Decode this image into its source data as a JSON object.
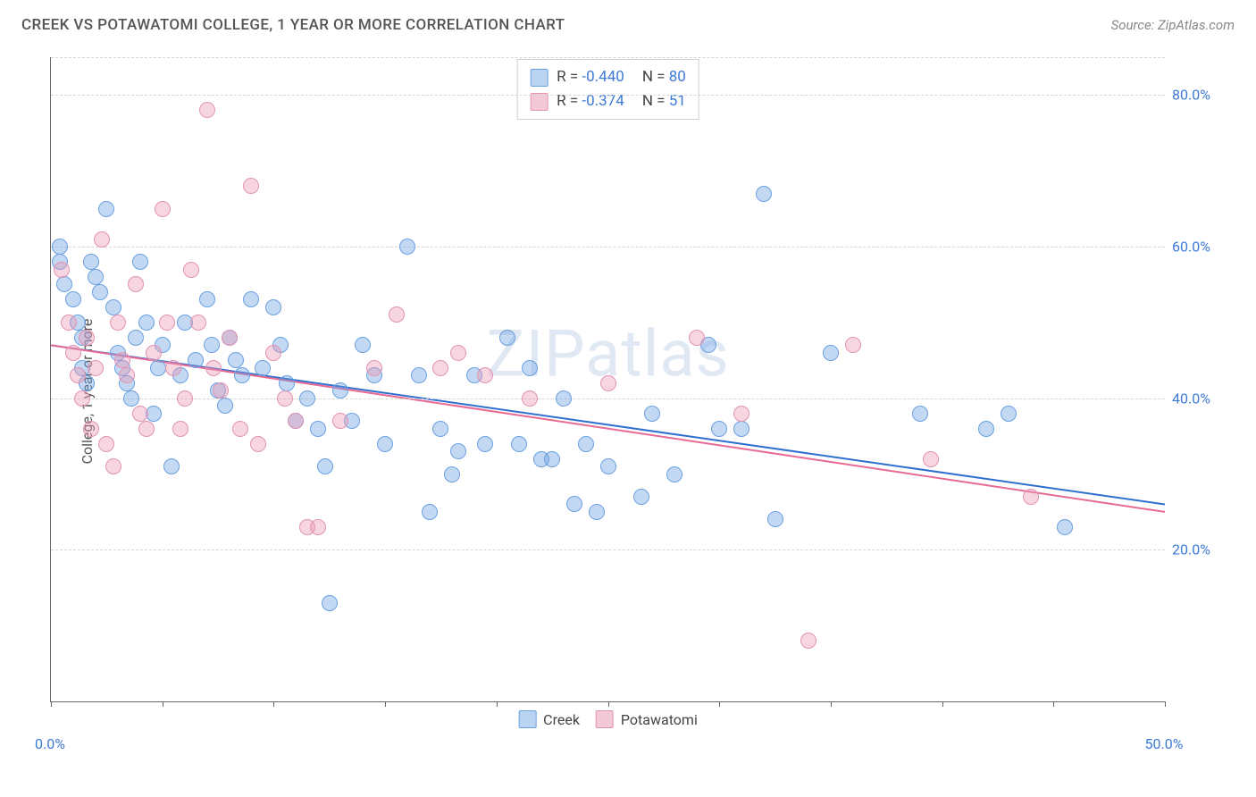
{
  "title": "CREEK VS POTAWATOMI COLLEGE, 1 YEAR OR MORE CORRELATION CHART",
  "source": "Source: ZipAtlas.com",
  "watermark": "ZIPatlas",
  "ylabel": "College, 1 year or more",
  "chart": {
    "type": "scatter",
    "background_color": "#ffffff",
    "grid_color": "#d5d5d5",
    "axis_color": "#666666",
    "tick_label_color": "#3d7ad6",
    "xlim": [
      0,
      50
    ],
    "ylim": [
      0,
      85
    ],
    "x_visible_min_label": "0.0%",
    "x_visible_max_label": "50.0%",
    "yticks": [
      20,
      40,
      60,
      80
    ],
    "ytick_labels": [
      "20.0%",
      "40.0%",
      "60.0%",
      "80.0%"
    ],
    "xtick_marks": [
      0,
      5,
      10,
      15,
      20,
      25,
      30,
      35,
      40,
      45,
      50
    ],
    "point_radius": 9,
    "point_stroke_width": 1,
    "series": [
      {
        "name": "Creek",
        "fill": "rgba(106,160,226,0.40)",
        "stroke": "#6aa0e2",
        "legend_swatch_fill": "#b9d3f1",
        "legend_swatch_border": "#6aa0e2",
        "R": "-0.440",
        "N": "80",
        "trend": {
          "x1": 0,
          "y1": 47,
          "x2": 50,
          "y2": 26,
          "color": "#2f6fd0",
          "width": 2
        },
        "points": [
          [
            0.4,
            60
          ],
          [
            0.4,
            58
          ],
          [
            0.6,
            55
          ],
          [
            1.0,
            53
          ],
          [
            1.2,
            50
          ],
          [
            1.4,
            48
          ],
          [
            1.4,
            44
          ],
          [
            1.6,
            42
          ],
          [
            1.8,
            58
          ],
          [
            2.0,
            56
          ],
          [
            2.2,
            54
          ],
          [
            2.5,
            65
          ],
          [
            2.8,
            52
          ],
          [
            3.0,
            46
          ],
          [
            3.2,
            44
          ],
          [
            3.4,
            42
          ],
          [
            3.6,
            40
          ],
          [
            3.8,
            48
          ],
          [
            4.0,
            58
          ],
          [
            4.3,
            50
          ],
          [
            4.6,
            38
          ],
          [
            4.8,
            44
          ],
          [
            5.0,
            47
          ],
          [
            5.4,
            31
          ],
          [
            5.8,
            43
          ],
          [
            6.0,
            50
          ],
          [
            6.5,
            45
          ],
          [
            7.0,
            53
          ],
          [
            7.2,
            47
          ],
          [
            7.5,
            41
          ],
          [
            7.8,
            39
          ],
          [
            8.0,
            48
          ],
          [
            8.3,
            45
          ],
          [
            8.6,
            43
          ],
          [
            9.0,
            53
          ],
          [
            9.5,
            44
          ],
          [
            10.0,
            52
          ],
          [
            10.3,
            47
          ],
          [
            10.6,
            42
          ],
          [
            11.0,
            37
          ],
          [
            11.5,
            40
          ],
          [
            12.0,
            36
          ],
          [
            12.3,
            31
          ],
          [
            12.5,
            13
          ],
          [
            13.0,
            41
          ],
          [
            13.5,
            37
          ],
          [
            14.0,
            47
          ],
          [
            14.5,
            43
          ],
          [
            15.0,
            34
          ],
          [
            16.0,
            60
          ],
          [
            16.5,
            43
          ],
          [
            17.0,
            25
          ],
          [
            17.5,
            36
          ],
          [
            18.0,
            30
          ],
          [
            18.3,
            33
          ],
          [
            19.0,
            43
          ],
          [
            19.5,
            34
          ],
          [
            20.5,
            48
          ],
          [
            21.0,
            34
          ],
          [
            21.5,
            44
          ],
          [
            22.0,
            32
          ],
          [
            22.5,
            32
          ],
          [
            23.0,
            40
          ],
          [
            23.5,
            26
          ],
          [
            24.0,
            34
          ],
          [
            24.5,
            25
          ],
          [
            25.0,
            31
          ],
          [
            26.5,
            27
          ],
          [
            27.0,
            38
          ],
          [
            28.0,
            30
          ],
          [
            29.5,
            47
          ],
          [
            30.0,
            36
          ],
          [
            31.0,
            36
          ],
          [
            32.0,
            67
          ],
          [
            32.5,
            24
          ],
          [
            35.0,
            46
          ],
          [
            39.0,
            38
          ],
          [
            42.0,
            36
          ],
          [
            43.0,
            38
          ],
          [
            45.5,
            23
          ]
        ]
      },
      {
        "name": "Potawatomi",
        "fill": "rgba(236,150,180,0.40)",
        "stroke": "#e194b2",
        "legend_swatch_fill": "#f3c9d8",
        "legend_swatch_border": "#e194b2",
        "R": "-0.374",
        "N": "51",
        "trend": {
          "x1": 0,
          "y1": 47,
          "x2": 50,
          "y2": 25,
          "color": "#e86a94",
          "width": 2
        },
        "points": [
          [
            0.5,
            57
          ],
          [
            0.8,
            50
          ],
          [
            1.0,
            46
          ],
          [
            1.2,
            43
          ],
          [
            1.4,
            40
          ],
          [
            1.6,
            48
          ],
          [
            1.8,
            36
          ],
          [
            2.0,
            44
          ],
          [
            2.3,
            61
          ],
          [
            2.5,
            34
          ],
          [
            2.8,
            31
          ],
          [
            3.0,
            50
          ],
          [
            3.2,
            45
          ],
          [
            3.4,
            43
          ],
          [
            3.8,
            55
          ],
          [
            4.0,
            38
          ],
          [
            4.3,
            36
          ],
          [
            4.6,
            46
          ],
          [
            5.0,
            65
          ],
          [
            5.2,
            50
          ],
          [
            5.5,
            44
          ],
          [
            5.8,
            36
          ],
          [
            6.0,
            40
          ],
          [
            6.3,
            57
          ],
          [
            6.6,
            50
          ],
          [
            7.0,
            78
          ],
          [
            7.3,
            44
          ],
          [
            7.6,
            41
          ],
          [
            8.0,
            48
          ],
          [
            8.5,
            36
          ],
          [
            9.0,
            68
          ],
          [
            9.3,
            34
          ],
          [
            10.0,
            46
          ],
          [
            10.5,
            40
          ],
          [
            11.0,
            37
          ],
          [
            11.5,
            23
          ],
          [
            12.0,
            23
          ],
          [
            13.0,
            37
          ],
          [
            14.5,
            44
          ],
          [
            15.5,
            51
          ],
          [
            17.5,
            44
          ],
          [
            18.3,
            46
          ],
          [
            19.5,
            43
          ],
          [
            21.5,
            40
          ],
          [
            25.0,
            42
          ],
          [
            29.0,
            48
          ],
          [
            31.0,
            38
          ],
          [
            34.0,
            8
          ],
          [
            36.0,
            47
          ],
          [
            39.5,
            32
          ],
          [
            44.0,
            27
          ]
        ]
      }
    ]
  }
}
